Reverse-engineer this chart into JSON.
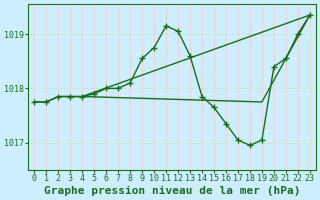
{
  "title": "Graphe pression niveau de la mer (hPa)",
  "background_color": "#cceeff",
  "line_color": "#1a6b1a",
  "xlim": [
    -0.5,
    23.5
  ],
  "ylim": [
    1016.5,
    1019.55
  ],
  "yticks": [
    1017,
    1018,
    1019
  ],
  "xticks": [
    0,
    1,
    2,
    3,
    4,
    5,
    6,
    7,
    8,
    9,
    10,
    11,
    12,
    13,
    14,
    15,
    16,
    17,
    18,
    19,
    20,
    21,
    22,
    23
  ],
  "vgrid_color": "#f0c8c8",
  "hgrid_color": "#c8e8c8",
  "series": [
    {
      "x": [
        0,
        1,
        2,
        3,
        4,
        19,
        23
      ],
      "y": [
        1017.75,
        1017.75,
        1017.85,
        1017.85,
        1017.85,
        1017.75,
        1019.35
      ],
      "draw_line": true,
      "draw_markers": false
    },
    {
      "x": [
        0,
        1,
        2,
        3,
        4,
        5,
        6,
        7,
        8,
        9,
        10,
        11,
        12,
        13,
        14,
        15,
        16,
        17,
        18,
        19,
        20,
        21,
        22,
        23
      ],
      "y": [
        1017.75,
        1017.75,
        1017.85,
        1017.85,
        1017.85,
        1017.9,
        1018.0,
        1018.0,
        1018.1,
        1018.55,
        1018.75,
        1019.15,
        1019.05,
        1018.6,
        1017.85,
        1017.65,
        1017.35,
        1017.05,
        1016.95,
        1017.05,
        1018.4,
        1018.55,
        1019.0,
        1019.35
      ],
      "draw_line": true,
      "draw_markers": true
    },
    {
      "x": [
        4,
        23
      ],
      "y": [
        1017.85,
        1019.35
      ],
      "draw_line": true,
      "draw_markers": false
    }
  ],
  "title_fontsize": 8,
  "tick_fontsize": 6,
  "marker": "+",
  "markersize": 4,
  "linewidth": 1.0
}
